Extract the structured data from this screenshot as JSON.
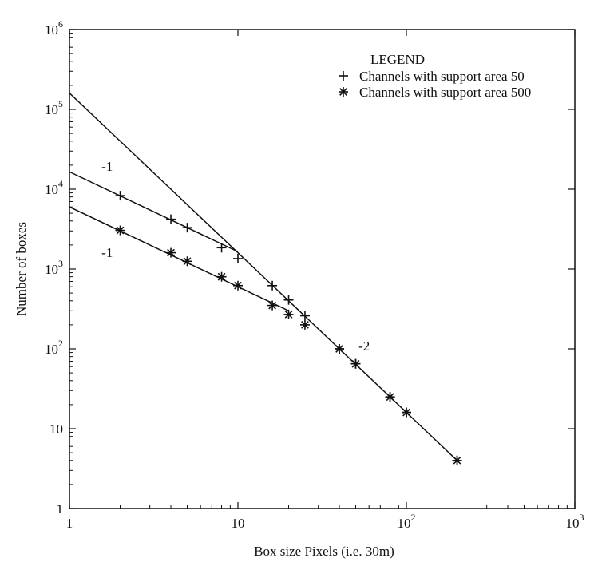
{
  "chart_data": {
    "type": "scatter",
    "title": "",
    "xlabel": "Box size  Pixels (i.e. 30m)",
    "ylabel": "Number of boxes",
    "xscale": "log",
    "yscale": "log",
    "xlim": [
      1,
      1000
    ],
    "ylim": [
      1,
      1000000
    ],
    "grid": false,
    "x_ticks": [
      {
        "value": 1,
        "base": "1",
        "exp": ""
      },
      {
        "value": 10,
        "base": "10",
        "exp": ""
      },
      {
        "value": 100,
        "base": "10",
        "exp": "2"
      },
      {
        "value": 1000,
        "base": "10",
        "exp": "3"
      }
    ],
    "y_ticks": [
      {
        "value": 1,
        "base": "1",
        "exp": ""
      },
      {
        "value": 10,
        "base": "10",
        "exp": ""
      },
      {
        "value": 100,
        "base": "10",
        "exp": "2"
      },
      {
        "value": 1000,
        "base": "10",
        "exp": "3"
      },
      {
        "value": 10000,
        "base": "10",
        "exp": "4"
      },
      {
        "value": 100000,
        "base": "10",
        "exp": "5"
      },
      {
        "value": 1000000,
        "base": "10",
        "exp": "6"
      }
    ],
    "legend": {
      "title": "LEGEND",
      "placement": "top-right",
      "entries": [
        {
          "marker": "+",
          "label": "Channels with support area 50"
        },
        {
          "marker": "*",
          "label": "Channels with support area 500"
        }
      ]
    },
    "series": [
      {
        "name": "Channels with support area 50",
        "marker": "+",
        "points": [
          {
            "x": 2,
            "y": 8300
          },
          {
            "x": 4,
            "y": 4200
          },
          {
            "x": 5,
            "y": 3300
          },
          {
            "x": 8,
            "y": 1850
          },
          {
            "x": 10,
            "y": 1350
          },
          {
            "x": 16,
            "y": 620
          },
          {
            "x": 20,
            "y": 410
          },
          {
            "x": 25,
            "y": 260
          },
          {
            "x": 40,
            "y": 100
          },
          {
            "x": 50,
            "y": 65
          },
          {
            "x": 80,
            "y": 25
          },
          {
            "x": 100,
            "y": 16
          },
          {
            "x": 200,
            "y": 4
          }
        ]
      },
      {
        "name": "Channels with support area 500",
        "marker": "*",
        "points": [
          {
            "x": 2,
            "y": 3050
          },
          {
            "x": 4,
            "y": 1600
          },
          {
            "x": 5,
            "y": 1250
          },
          {
            "x": 8,
            "y": 800
          },
          {
            "x": 10,
            "y": 620
          },
          {
            "x": 16,
            "y": 350
          },
          {
            "x": 20,
            "y": 270
          },
          {
            "x": 25,
            "y": 200
          },
          {
            "x": 40,
            "y": 100
          },
          {
            "x": 50,
            "y": 65
          },
          {
            "x": 80,
            "y": 25
          },
          {
            "x": 100,
            "y": 16
          },
          {
            "x": 200,
            "y": 4
          }
        ]
      }
    ],
    "fit_lines": [
      {
        "from": [
          1,
          16500
        ],
        "to": [
          10,
          1650
        ]
      },
      {
        "from": [
          1,
          6000
        ],
        "to": [
          20,
          300
        ]
      },
      {
        "from": [
          1,
          160000
        ],
        "to": [
          200,
          4
        ]
      }
    ],
    "annotations": [
      {
        "text": "-1",
        "x": 1.55,
        "y": 17000
      },
      {
        "text": "-1",
        "x": 1.55,
        "y": 1420
      },
      {
        "text": "-2",
        "x": 52,
        "y": 95
      }
    ]
  }
}
